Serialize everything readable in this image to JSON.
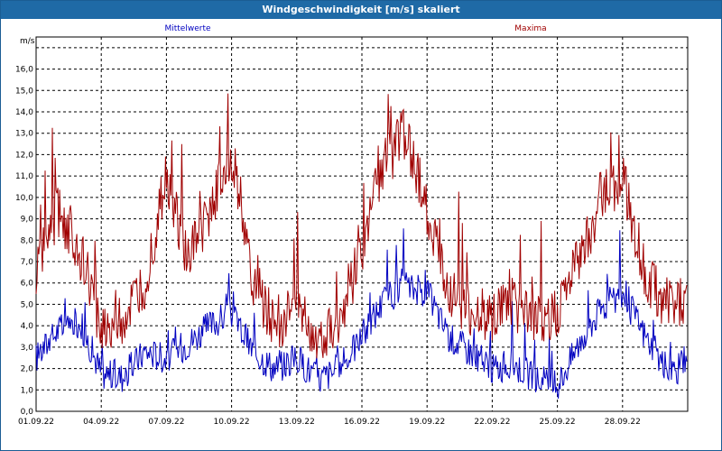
{
  "window": {
    "title": "Windgeschwindigkeit [m/s] skaliert"
  },
  "legend": {
    "mean_label": "Mittelwerte",
    "max_label": "Maxima"
  },
  "colors": {
    "titlebar": "#1f6aa6",
    "mean": "#0000c0",
    "max": "#a00000",
    "grid": "#000000"
  },
  "chart_data": {
    "type": "line",
    "title": "Windgeschwindigkeit [m/s] skaliert",
    "ylabel": "m/s",
    "xlabel": "",
    "ylim": [
      0,
      17.5
    ],
    "xlim": [
      "01.09.22",
      "01.10.22"
    ],
    "yticks": [
      "0,0",
      "1,0",
      "2,0",
      "3,0",
      "4,0",
      "5,0",
      "6,0",
      "7,0",
      "8,0",
      "9,0",
      "10,0",
      "11,0",
      "12,0",
      "13,0",
      "14,0",
      "15,0",
      "16,0"
    ],
    "xticks": [
      "01.09.22",
      "04.09.22",
      "07.09.22",
      "10.09.22",
      "13.09.22",
      "16.09.22",
      "19.09.22",
      "22.09.22",
      "25.09.22",
      "28.09.22"
    ],
    "grid": true,
    "legend_position": "top",
    "x": [
      "01.09.",
      "02.09.",
      "03.09.",
      "04.09.",
      "05.09.",
      "06.09.",
      "07.09.",
      "08.09.",
      "09.09.",
      "10.09.",
      "11.09.",
      "12.09.",
      "13.09.",
      "14.09.",
      "15.09.",
      "16.09.",
      "17.09.",
      "18.09.",
      "19.09.",
      "20.09.",
      "21.09.",
      "22.09.",
      "23.09.",
      "24.09.",
      "25.09.",
      "26.09.",
      "27.09.",
      "28.09.",
      "29.09.",
      "30.09."
    ],
    "series": [
      {
        "name": "Mittelwerte",
        "color": "#0000c0",
        "values": [
          2.5,
          3.8,
          4.2,
          1.8,
          1.6,
          2.8,
          2.5,
          3.2,
          4.0,
          4.6,
          2.8,
          2.0,
          2.5,
          1.5,
          2.0,
          3.5,
          5.2,
          5.8,
          5.6,
          3.5,
          2.8,
          2.0,
          2.2,
          1.5,
          1.2,
          3.2,
          4.8,
          5.5,
          3.6,
          2.0
        ]
      },
      {
        "name": "Maxima",
        "color": "#a00000",
        "values": [
          6.5,
          9.5,
          7.5,
          4.0,
          4.2,
          6.0,
          11.0,
          7.0,
          9.5,
          12.0,
          6.0,
          4.0,
          5.0,
          3.5,
          4.5,
          7.5,
          11.5,
          13.0,
          9.5,
          5.5,
          4.5,
          4.5,
          5.0,
          4.0,
          4.5,
          7.0,
          10.0,
          11.0,
          6.5,
          5.0
        ]
      }
    ]
  }
}
